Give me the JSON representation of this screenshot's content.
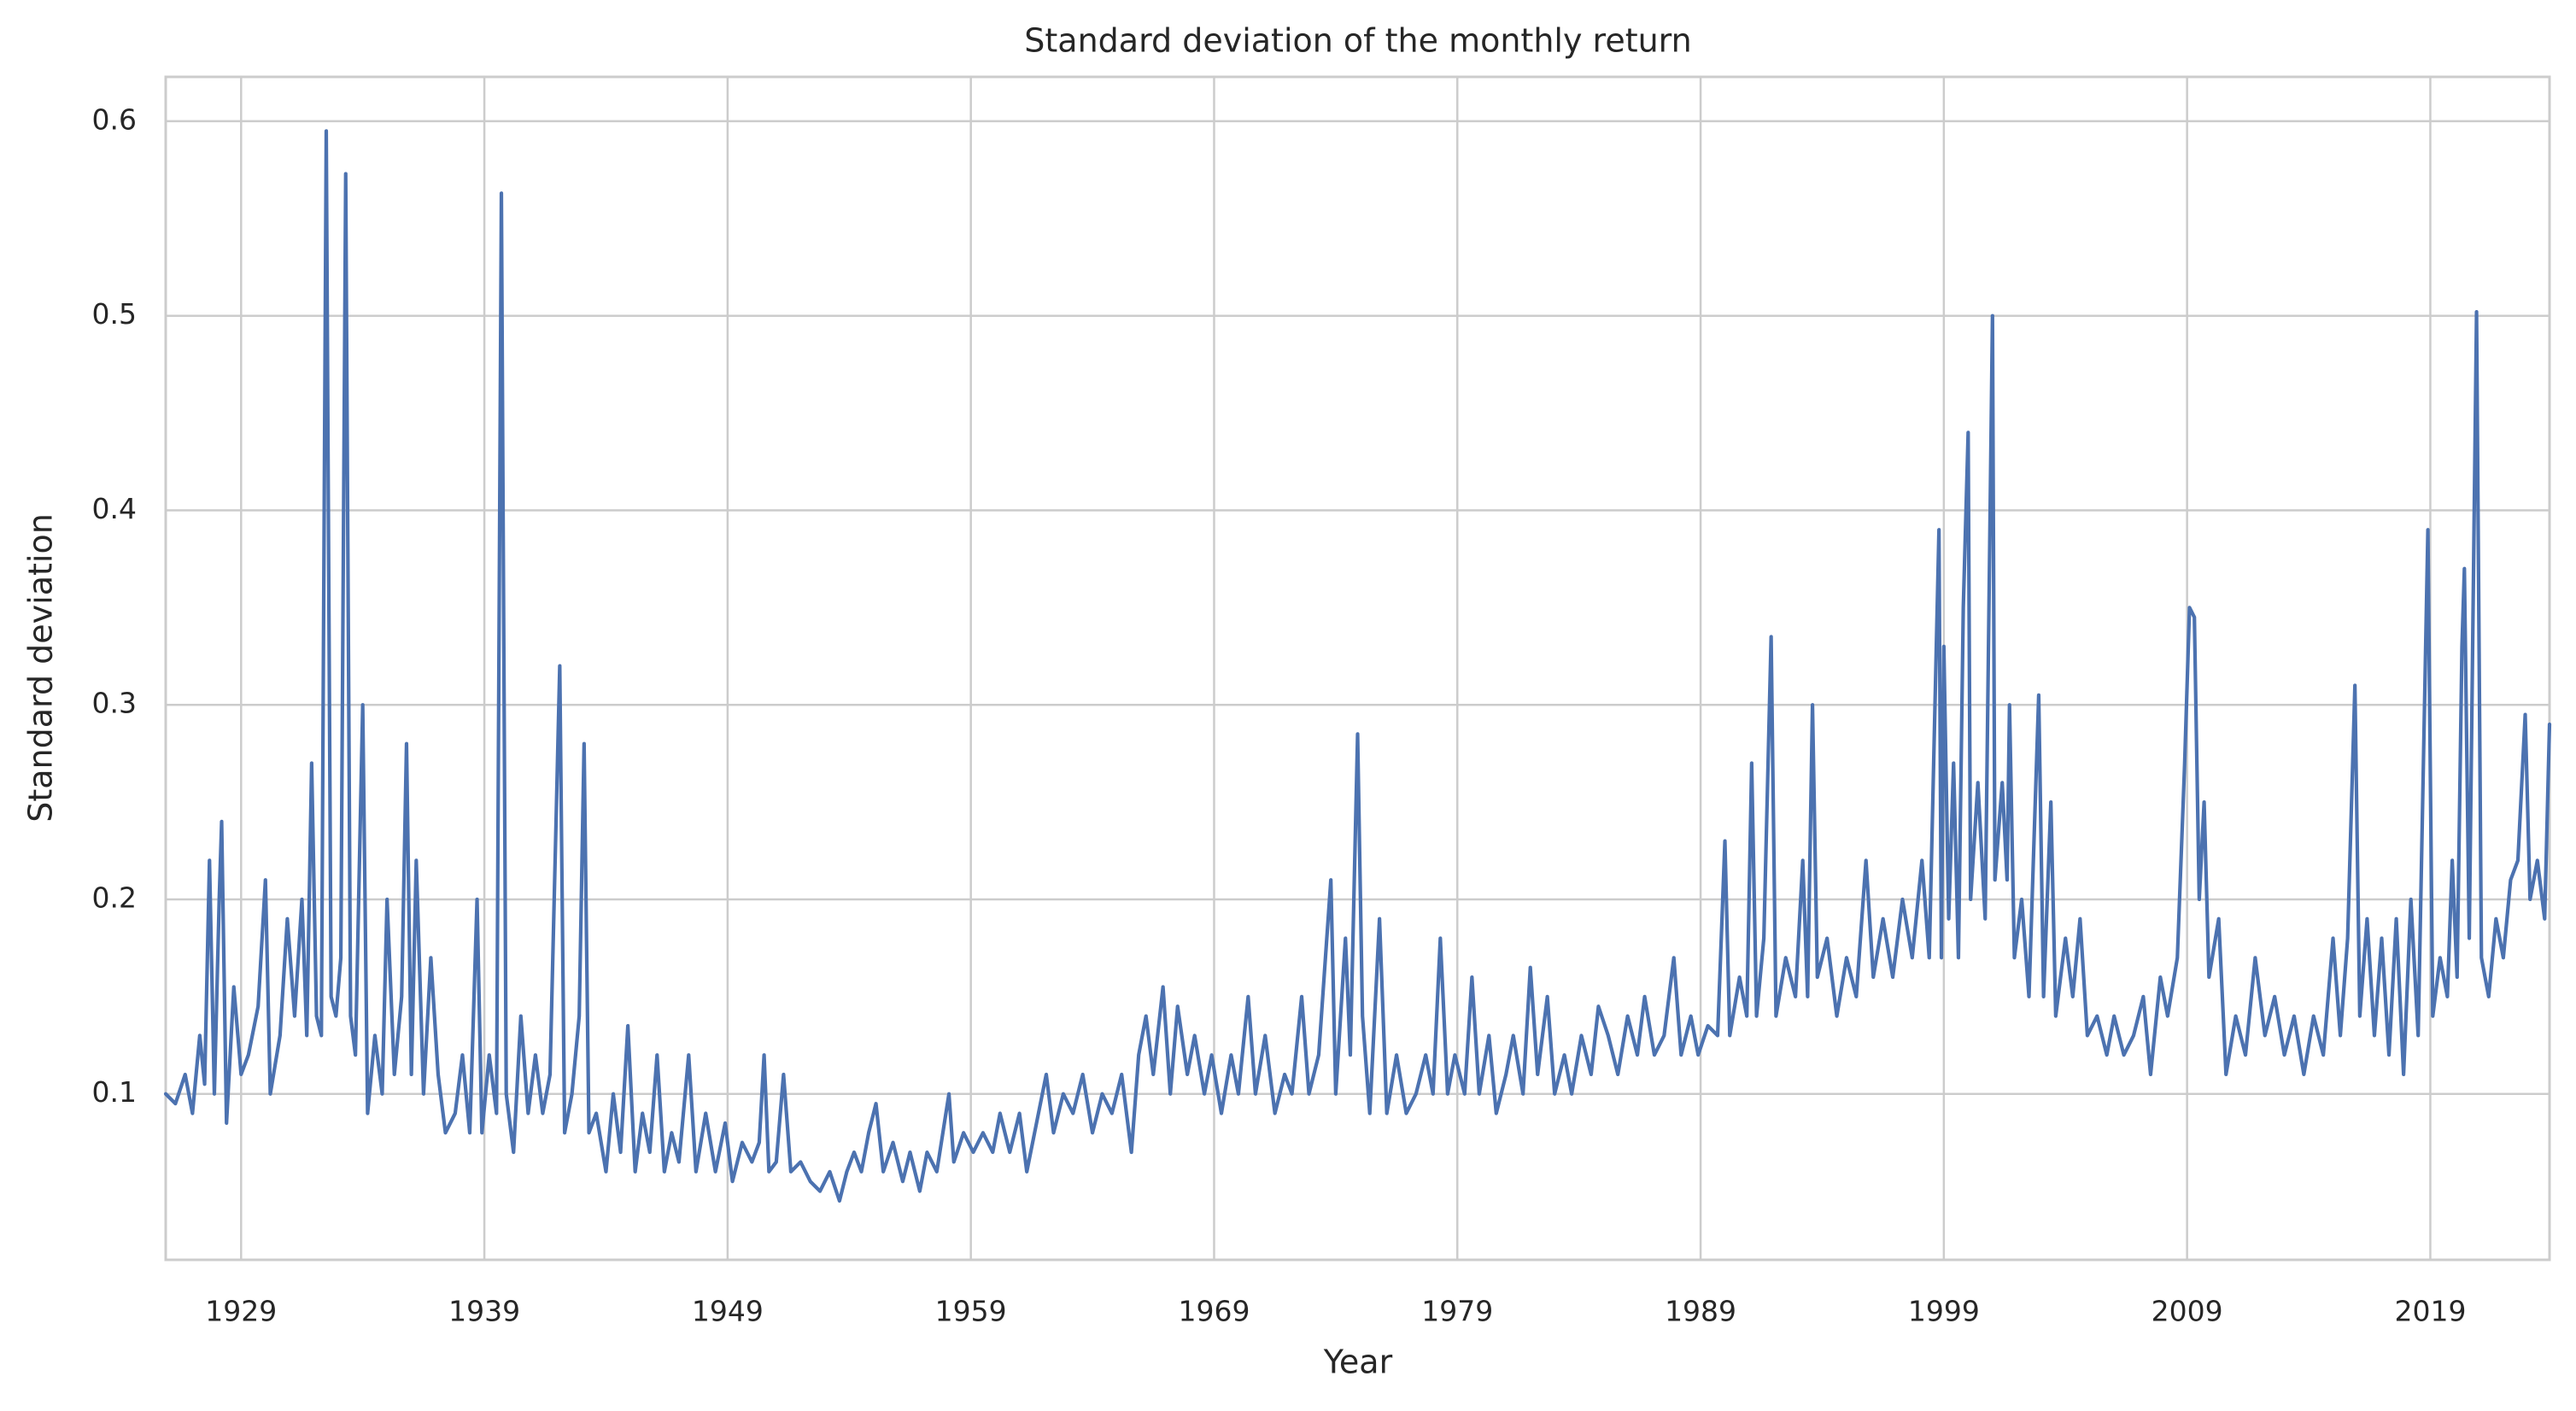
{
  "chart_data": {
    "type": "line",
    "title": "Standard deviation of the monthly return",
    "xlabel": "Year",
    "ylabel": "Standard deviation",
    "color": "#4c72b0",
    "grid": true,
    "xlim": [
      1925.9,
      2023.9
    ],
    "ylim": [
      0.0147,
      0.6228
    ],
    "xticks": [
      1929,
      1939,
      1949,
      1959,
      1969,
      1979,
      1989,
      1999,
      2009,
      2019
    ],
    "yticks": [
      0.1,
      0.2,
      0.3,
      0.4,
      0.5,
      0.6
    ],
    "x": [
      1925.9,
      1926.3,
      1926.7,
      1927.0,
      1927.3,
      1927.5,
      1927.7,
      1927.9,
      1928.1,
      1928.2,
      1928.4,
      1928.7,
      1929.0,
      1929.3,
      1929.7,
      1930.0,
      1930.2,
      1930.6,
      1930.9,
      1931.2,
      1931.5,
      1931.7,
      1931.9,
      1932.1,
      1932.3,
      1932.5,
      1932.7,
      1932.9,
      1933.1,
      1933.3,
      1933.5,
      1933.7,
      1934.0,
      1934.2,
      1934.5,
      1934.8,
      1935.0,
      1935.3,
      1935.6,
      1935.8,
      1936.0,
      1936.2,
      1936.5,
      1936.8,
      1937.1,
      1937.4,
      1937.8,
      1938.1,
      1938.4,
      1938.6,
      1938.7,
      1938.9,
      1939.2,
      1939.5,
      1939.7,
      1939.9,
      1940.2,
      1940.5,
      1940.8,
      1941.1,
      1941.4,
      1941.7,
      1942.1,
      1942.3,
      1942.6,
      1942.9,
      1943.1,
      1943.3,
      1943.6,
      1944.0,
      1944.3,
      1944.6,
      1944.9,
      1945.2,
      1945.5,
      1945.8,
      1946.1,
      1946.4,
      1946.7,
      1947.0,
      1947.4,
      1947.7,
      1948.1,
      1948.5,
      1948.9,
      1949.2,
      1949.6,
      1950.0,
      1950.3,
      1950.5,
      1950.7,
      1951.0,
      1951.3,
      1951.6,
      1952.0,
      1952.4,
      1952.8,
      1953.2,
      1953.6,
      1953.9,
      1954.2,
      1954.5,
      1954.8,
      1955.1,
      1955.4,
      1955.8,
      1956.2,
      1956.5,
      1956.9,
      1957.2,
      1957.6,
      1958.1,
      1958.3,
      1958.7,
      1959.1,
      1959.5,
      1959.9,
      1960.2,
      1960.6,
      1961.0,
      1961.3,
      1961.7,
      1962.1,
      1962.4,
      1962.8,
      1963.2,
      1963.6,
      1964.0,
      1964.4,
      1964.8,
      1965.2,
      1965.6,
      1965.9,
      1966.2,
      1966.5,
      1966.9,
      1967.2,
      1967.5,
      1967.9,
      1968.2,
      1968.6,
      1968.9,
      1969.3,
      1969.7,
      1970.0,
      1970.4,
      1970.7,
      1971.1,
      1971.5,
      1971.9,
      1972.2,
      1972.6,
      1972.9,
      1973.3,
      1973.8,
      1974.0,
      1974.4,
      1974.6,
      1974.9,
      1975.1,
      1975.4,
      1975.8,
      1976.1,
      1976.5,
      1976.9,
      1977.3,
      1977.7,
      1978.0,
      1978.3,
      1978.6,
      1978.9,
      1979.3,
      1979.6,
      1979.9,
      1980.3,
      1980.6,
      1981.0,
      1981.3,
      1981.7,
      1982.0,
      1982.3,
      1982.7,
      1983.0,
      1983.4,
      1983.7,
      1984.1,
      1984.5,
      1984.8,
      1985.2,
      1985.6,
      1986.0,
      1986.4,
      1986.7,
      1987.1,
      1987.5,
      1987.9,
      1988.2,
      1988.6,
      1988.9,
      1989.3,
      1989.7,
      1990.0,
      1990.2,
      1990.6,
      1990.9,
      1991.1,
      1991.3,
      1991.6,
      1991.9,
      1992.1,
      1992.5,
      1992.9,
      1993.2,
      1993.4,
      1993.6,
      1993.8,
      1994.2,
      1994.6,
      1995.0,
      1995.4,
      1995.8,
      1996.1,
      1996.5,
      1996.9,
      1997.3,
      1997.7,
      1998.1,
      1998.4,
      1998.8,
      1998.9,
      1999.0,
      1999.2,
      1999.4,
      1999.6,
      1999.8,
      2000.0,
      2000.1,
      2000.4,
      2000.7,
      2001.0,
      2001.1,
      2001.4,
      2001.6,
      2001.7,
      2001.9,
      2002.2,
      2002.5,
      2002.9,
      2003.1,
      2003.4,
      2003.6,
      2004.0,
      2004.3,
      2004.6,
      2004.9,
      2005.3,
      2005.7,
      2006.0,
      2006.4,
      2006.8,
      2007.2,
      2007.5,
      2007.9,
      2008.2,
      2008.6,
      2008.9,
      2009.1,
      2009.3,
      2009.5,
      2009.7,
      2009.9,
      2010.3,
      2010.6,
      2011.0,
      2011.4,
      2011.8,
      2012.2,
      2012.6,
      2013.0,
      2013.4,
      2013.8,
      2014.2,
      2014.6,
      2015.0,
      2015.3,
      2015.6,
      2015.9,
      2016.1,
      2016.4,
      2016.7,
      2017.0,
      2017.3,
      2017.6,
      2017.9,
      2018.2,
      2018.5,
      2018.9,
      2019.1,
      2019.4,
      2019.7,
      2019.9,
      2020.1,
      2020.3,
      2020.4,
      2020.6,
      2020.9,
      2021.1,
      2021.4,
      2021.7,
      2022.0,
      2022.3,
      2022.6,
      2022.9,
      2023.1,
      2023.4,
      2023.7,
      2023.9
    ],
    "values": [
      0.1,
      0.095,
      0.11,
      0.09,
      0.13,
      0.105,
      0.22,
      0.1,
      0.2,
      0.24,
      0.085,
      0.155,
      0.11,
      0.12,
      0.145,
      0.21,
      0.1,
      0.13,
      0.19,
      0.14,
      0.2,
      0.13,
      0.27,
      0.14,
      0.13,
      0.595,
      0.15,
      0.14,
      0.17,
      0.573,
      0.14,
      0.12,
      0.3,
      0.09,
      0.13,
      0.1,
      0.2,
      0.11,
      0.15,
      0.28,
      0.11,
      0.22,
      0.1,
      0.17,
      0.11,
      0.08,
      0.09,
      0.12,
      0.08,
      0.16,
      0.2,
      0.08,
      0.12,
      0.09,
      0.563,
      0.1,
      0.07,
      0.14,
      0.09,
      0.12,
      0.09,
      0.11,
      0.32,
      0.08,
      0.1,
      0.14,
      0.28,
      0.08,
      0.09,
      0.06,
      0.1,
      0.07,
      0.135,
      0.06,
      0.09,
      0.07,
      0.12,
      0.06,
      0.08,
      0.065,
      0.12,
      0.06,
      0.09,
      0.06,
      0.085,
      0.055,
      0.075,
      0.065,
      0.075,
      0.12,
      0.06,
      0.065,
      0.11,
      0.06,
      0.065,
      0.055,
      0.05,
      0.06,
      0.045,
      0.06,
      0.07,
      0.06,
      0.08,
      0.095,
      0.06,
      0.075,
      0.055,
      0.07,
      0.05,
      0.07,
      0.06,
      0.1,
      0.065,
      0.08,
      0.07,
      0.08,
      0.07,
      0.09,
      0.07,
      0.09,
      0.06,
      0.085,
      0.11,
      0.08,
      0.1,
      0.09,
      0.11,
      0.08,
      0.1,
      0.09,
      0.11,
      0.07,
      0.12,
      0.14,
      0.11,
      0.155,
      0.1,
      0.145,
      0.11,
      0.13,
      0.1,
      0.12,
      0.09,
      0.12,
      0.1,
      0.15,
      0.1,
      0.13,
      0.09,
      0.11,
      0.1,
      0.15,
      0.1,
      0.12,
      0.21,
      0.1,
      0.18,
      0.12,
      0.285,
      0.14,
      0.09,
      0.19,
      0.09,
      0.12,
      0.09,
      0.1,
      0.12,
      0.1,
      0.18,
      0.1,
      0.12,
      0.1,
      0.16,
      0.1,
      0.13,
      0.09,
      0.11,
      0.13,
      0.1,
      0.165,
      0.11,
      0.15,
      0.1,
      0.12,
      0.1,
      0.13,
      0.11,
      0.145,
      0.13,
      0.11,
      0.14,
      0.12,
      0.15,
      0.12,
      0.13,
      0.17,
      0.12,
      0.14,
      0.12,
      0.135,
      0.13,
      0.23,
      0.13,
      0.16,
      0.14,
      0.27,
      0.14,
      0.18,
      0.335,
      0.14,
      0.17,
      0.15,
      0.22,
      0.15,
      0.3,
      0.16,
      0.18,
      0.14,
      0.17,
      0.15,
      0.22,
      0.16,
      0.19,
      0.16,
      0.2,
      0.17,
      0.22,
      0.17,
      0.39,
      0.17,
      0.33,
      0.19,
      0.27,
      0.17,
      0.35,
      0.44,
      0.2,
      0.26,
      0.19,
      0.5,
      0.21,
      0.26,
      0.21,
      0.3,
      0.17,
      0.2,
      0.15,
      0.305,
      0.15,
      0.25,
      0.14,
      0.18,
      0.15,
      0.19,
      0.13,
      0.14,
      0.12,
      0.14,
      0.12,
      0.13,
      0.15,
      0.11,
      0.16,
      0.14,
      0.17,
      0.27,
      0.35,
      0.345,
      0.2,
      0.25,
      0.16,
      0.19,
      0.11,
      0.14,
      0.12,
      0.17,
      0.13,
      0.15,
      0.12,
      0.14,
      0.11,
      0.14,
      0.12,
      0.18,
      0.13,
      0.18,
      0.31,
      0.14,
      0.19,
      0.13,
      0.18,
      0.12,
      0.19,
      0.11,
      0.2,
      0.13,
      0.39,
      0.14,
      0.17,
      0.15,
      0.22,
      0.16,
      0.33,
      0.37,
      0.18,
      0.502,
      0.17,
      0.15,
      0.19,
      0.17,
      0.21,
      0.22,
      0.295,
      0.2,
      0.22,
      0.19,
      0.29
    ]
  }
}
